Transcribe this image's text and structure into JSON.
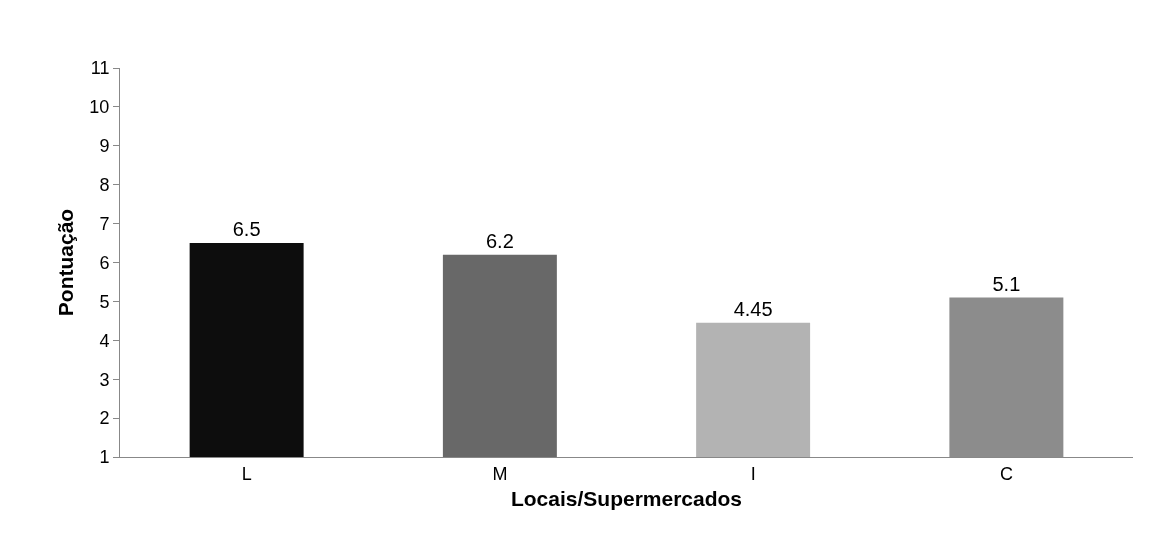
{
  "chart_data": {
    "type": "bar",
    "xlabel": "Locais/Supermercados",
    "ylabel": "Pontuação",
    "categories": [
      "L",
      "M",
      "I",
      "C"
    ],
    "values": [
      6.5,
      6.2,
      4.45,
      5.1
    ],
    "colors": [
      "#0d0d0d",
      "#686868",
      "#b3b3b3",
      "#8c8c8c"
    ],
    "ylim": [
      1,
      11
    ],
    "yticks": [
      1,
      2,
      3,
      4,
      5,
      6,
      7,
      8,
      9,
      10,
      11
    ],
    "data_labels": true
  }
}
